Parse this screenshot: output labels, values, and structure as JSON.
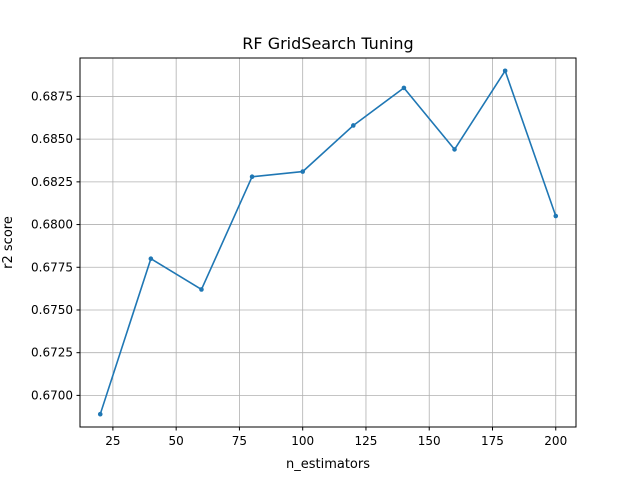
{
  "chart_data": {
    "type": "line",
    "title": "RF GridSearch Tuning",
    "xlabel": "n_estimators",
    "ylabel": "r2 score",
    "xlim": [
      12,
      208
    ],
    "ylim": [
      0.66815,
      0.68975
    ],
    "grid": true,
    "x_ticks": [
      25,
      50,
      75,
      100,
      125,
      150,
      175,
      200
    ],
    "y_ticks": [
      0.67,
      0.6725,
      0.675,
      0.6775,
      0.68,
      0.6825,
      0.685,
      0.6875
    ],
    "x_tick_labels": [
      "25",
      "50",
      "75",
      "100",
      "125",
      "150",
      "175",
      "200"
    ],
    "y_tick_labels": [
      "0.6700",
      "0.6725",
      "0.6750",
      "0.6775",
      "0.6800",
      "0.6825",
      "0.6850",
      "0.6875"
    ],
    "series": [
      {
        "color": "#1f77b4",
        "x": [
          20,
          40,
          60,
          80,
          100,
          120,
          140,
          160,
          180,
          200
        ],
        "y": [
          0.6689,
          0.678,
          0.6762,
          0.6828,
          0.6831,
          0.6858,
          0.688,
          0.6844,
          0.689,
          0.6805
        ]
      }
    ]
  }
}
